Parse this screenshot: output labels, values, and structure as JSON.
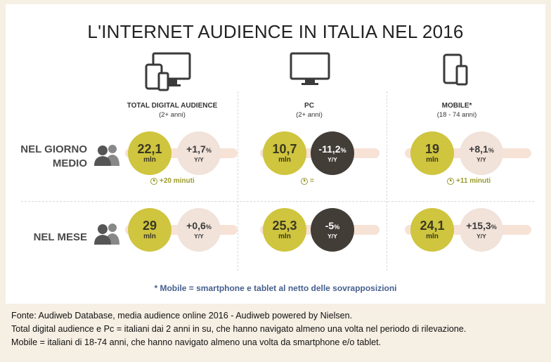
{
  "title": "L'INTERNET AUDIENCE IN ITALIA NEL 2016",
  "chart_data": {
    "type": "table",
    "title": "L'INTERNET AUDIENCE IN ITALIA NEL 2016",
    "columns": [
      {
        "label": "TOTAL DIGITAL AUDIENCE",
        "sub": "(2+ anni)",
        "icon": "multi-device-icon"
      },
      {
        "label": "PC",
        "sub": "(2+ anni)",
        "icon": "monitor-icon"
      },
      {
        "label": "MOBILE*",
        "sub": "(18 - 74 anni)",
        "icon": "mobile-devices-icon"
      }
    ],
    "rows": [
      {
        "label_lines": [
          "NEL GIORNO",
          "MEDIO"
        ],
        "cells": [
          {
            "value": "22,1",
            "unit": "mln",
            "change": "+1,7",
            "change_unit": "Y/Y",
            "extra": "+20 minuti"
          },
          {
            "value": "10,7",
            "unit": "mln",
            "change": "-11,2",
            "change_unit": "Y/Y",
            "extra": "="
          },
          {
            "value": "19",
            "unit": "mln",
            "change": "+8,1",
            "change_unit": "Y/Y",
            "extra": "+11 minuti"
          }
        ]
      },
      {
        "label_lines": [
          "NEL MESE"
        ],
        "cells": [
          {
            "value": "29",
            "unit": "mln",
            "change": "+0,6",
            "change_unit": "Y/Y"
          },
          {
            "value": "25,3",
            "unit": "mln",
            "change": "-5",
            "change_unit": "Y/Y"
          },
          {
            "value": "24,1",
            "unit": "mln",
            "change": "+15,3",
            "change_unit": "Y/Y"
          }
        ]
      }
    ]
  },
  "note": "* Mobile = smartphone e tablet al netto delle sovrapposizioni",
  "footer": [
    "Fonte: Audiweb Database, media audience online 2016 - Audiweb powered by Nielsen.",
    "Total digital audience e Pc = italiani dai 2 anni in su, che hanno navigato almeno una volta nel periodo di rilevazione.",
    "Mobile = italiani di 18-74 anni, che hanno navigato almeno una volta da smartphone e/o tablet."
  ],
  "colors": {
    "main_circle": "#cfc53e",
    "change_positive": "#f1e2da",
    "change_negative": "#433d38",
    "band": "#f7e2d6",
    "accent_text": "#9b9a2d",
    "note": "#46608e"
  }
}
